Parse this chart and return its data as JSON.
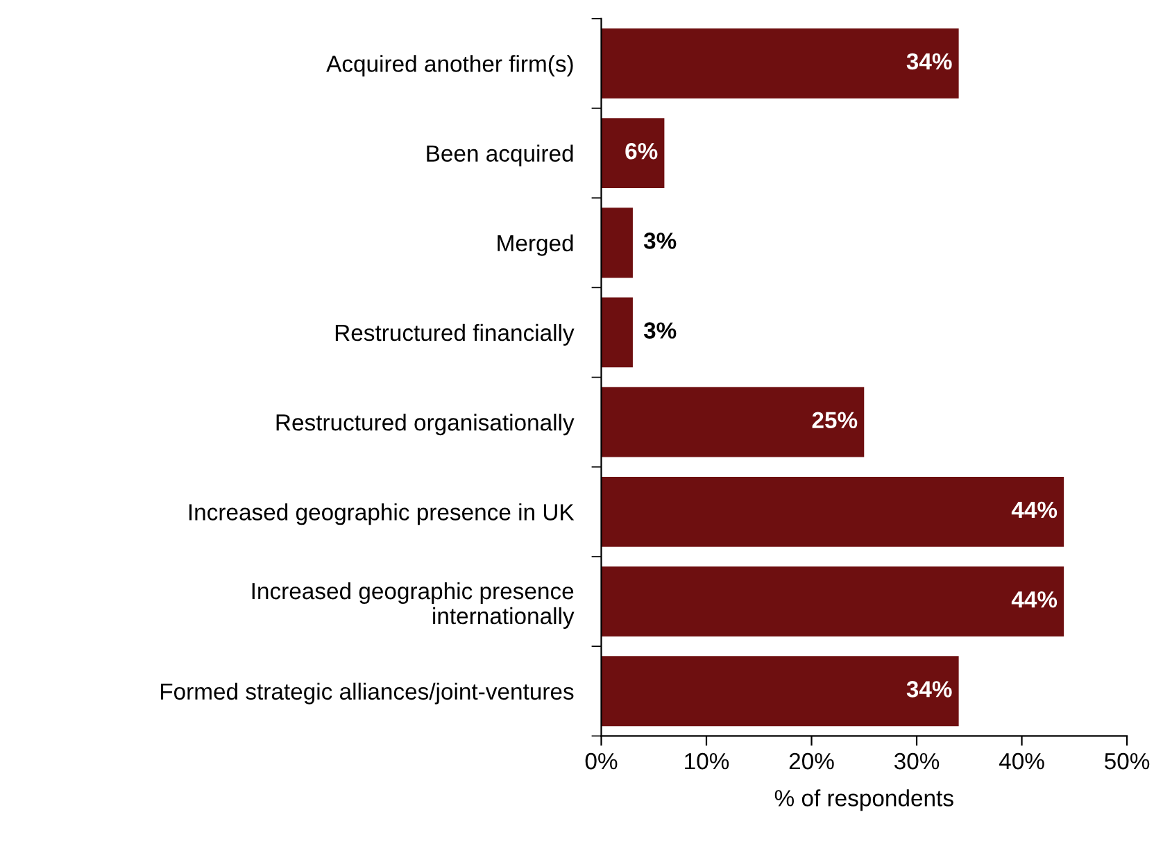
{
  "chart_data": {
    "type": "bar",
    "orientation": "horizontal",
    "xlabel": "% of respondents",
    "categories": [
      "Acquired another firm(s)",
      "Been acquired",
      "Merged",
      "Restructured financially",
      "Restructured organisationally",
      "Increased geographic presence in UK",
      "Increased geographic presence\ninternationally",
      "Formed strategic alliances/joint-ventures"
    ],
    "values": [
      34,
      6,
      3,
      3,
      25,
      44,
      44,
      34
    ],
    "value_labels": [
      "34%",
      "6%",
      "3%",
      "3%",
      "25%",
      "44%",
      "44%",
      "34%"
    ],
    "color": "#6e0f10",
    "xlim": [
      0,
      50
    ],
    "xticks": [
      {
        "value": 0,
        "label": "0%"
      },
      {
        "value": 10,
        "label": "10%"
      },
      {
        "value": 20,
        "label": "20%"
      },
      {
        "value": 30,
        "label": "30%"
      },
      {
        "value": 40,
        "label": "40%"
      },
      {
        "value": 50,
        "label": "50%"
      }
    ],
    "grid": false,
    "legend": false
  }
}
